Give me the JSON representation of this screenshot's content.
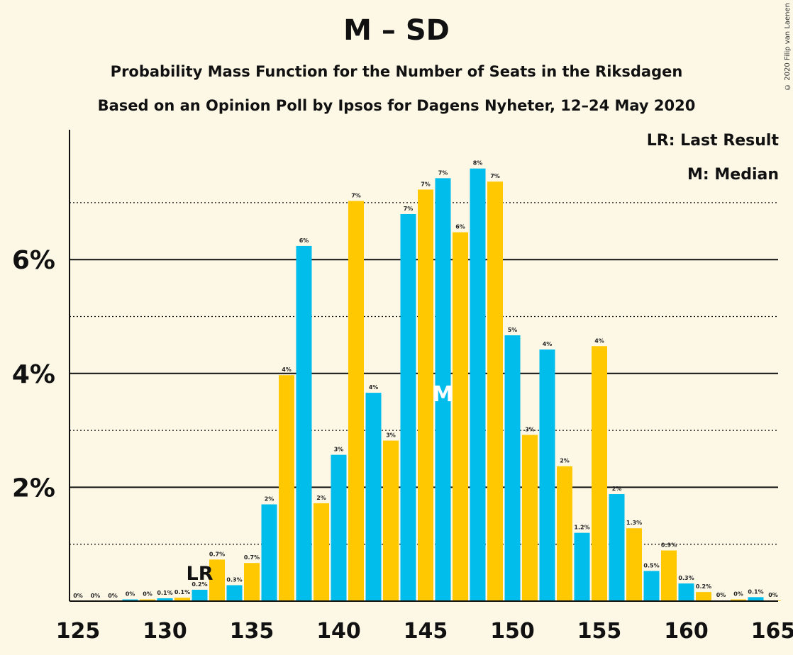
{
  "header": {
    "title": "M – SD",
    "subtitle": "Probability Mass Function for the Number of Seats in the Riksdagen",
    "subtitle2": "Based on an Opinion Poll by Ipsos for Dagens Nyheter, 12–24 May 2020",
    "copyright": "© 2020 Filip van Laenen"
  },
  "legend": {
    "lr": "LR: Last Result",
    "m": "M: Median"
  },
  "colors": {
    "background": "#fdf8e6",
    "bar_blue": "#00bdec",
    "bar_yellow": "#ffc800",
    "axis": "#111111"
  },
  "chart_data": {
    "type": "bar",
    "x": [
      125,
      126,
      127,
      128,
      129,
      130,
      131,
      132,
      133,
      134,
      135,
      136,
      137,
      138,
      139,
      140,
      141,
      142,
      143,
      144,
      145,
      146,
      147,
      148,
      149,
      150,
      151,
      152,
      153,
      154,
      155,
      156,
      157,
      158,
      159,
      160,
      161,
      162,
      163,
      164,
      165
    ],
    "values": [
      0,
      0,
      0,
      0.03,
      0.03,
      0.05,
      0.06,
      0.2,
      0.73,
      0.28,
      0.67,
      1.7,
      3.97,
      6.24,
      1.72,
      2.57,
      7.03,
      3.66,
      2.82,
      6.8,
      7.23,
      7.43,
      6.48,
      7.6,
      7.37,
      4.67,
      2.92,
      4.42,
      2.37,
      1.2,
      4.48,
      1.88,
      1.28,
      0.53,
      0.89,
      0.31,
      0.16,
      0.01,
      0.03,
      0.07,
      0.01
    ],
    "labels": [
      "0%",
      "0%",
      "0%",
      "0%",
      "0%",
      "0.1%",
      "0.1%",
      "0.2%",
      "0.7%",
      "0.3%",
      "0.7%",
      "2%",
      "4%",
      "6%",
      "2%",
      "3%",
      "7%",
      "4%",
      "3%",
      "7%",
      "7%",
      "7%",
      "6%",
      "8%",
      "7%",
      "5%",
      "3%",
      "4%",
      "2%",
      "1.2%",
      "4%",
      "2%",
      "1.3%",
      "0.5%",
      "0.9%",
      "0.3%",
      "0.2%",
      "0%",
      "0%",
      "0.1%",
      "0%"
    ],
    "xticks": [
      125,
      130,
      135,
      140,
      145,
      150,
      155,
      160,
      165
    ],
    "yticks": [
      2,
      4,
      6
    ],
    "ytick_labels": [
      "2%",
      "4%",
      "6%"
    ],
    "yminor": [
      1,
      3,
      5,
      7
    ],
    "ylim": [
      0,
      8.3
    ],
    "last_result": 132,
    "last_result_label": "LR",
    "median": 146,
    "median_label": "M",
    "xlabel": "",
    "ylabel": ""
  }
}
